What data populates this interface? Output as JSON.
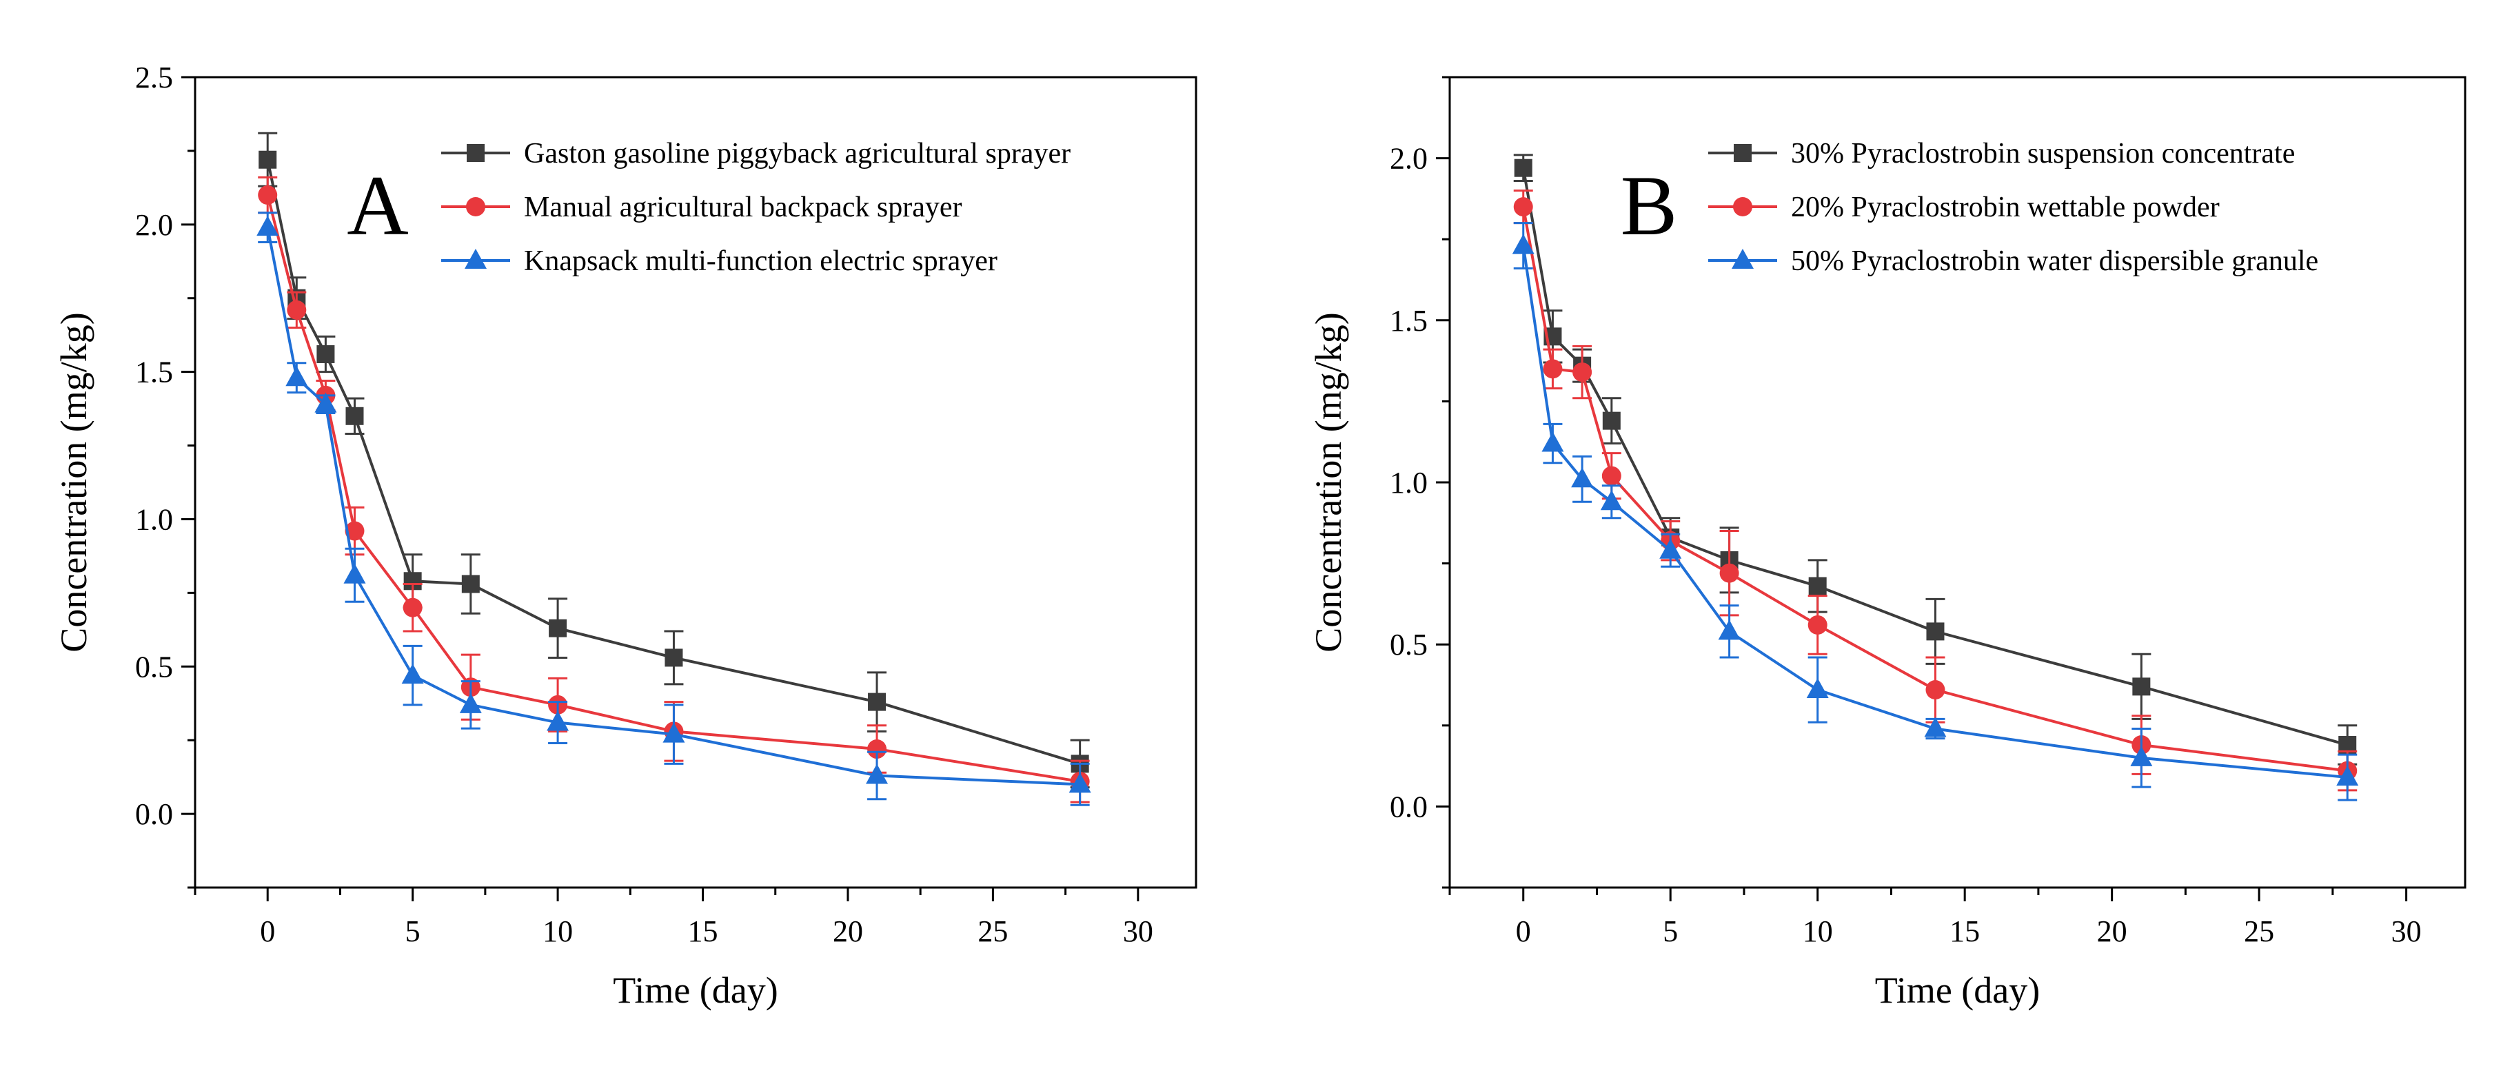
{
  "colors": {
    "black_series": "#3c3c3c",
    "red_series": "#e8383d",
    "blue_series": "#1f6fd6",
    "axis": "#000000"
  },
  "chart_data": [
    {
      "type": "line",
      "panel_label": "A",
      "title": "",
      "xlabel": "Time (day)",
      "ylabel": "Concentration (mg/kg)",
      "xlim": [
        -2.5,
        32
      ],
      "ylim": [
        -0.25,
        2.5
      ],
      "xticks": [
        0,
        5,
        10,
        15,
        20,
        25,
        30
      ],
      "xtick_labels": [
        "0",
        "5",
        "10",
        "15",
        "20",
        "25",
        "30"
      ],
      "yticks": [
        0.0,
        0.5,
        1.0,
        1.5,
        2.0,
        2.5
      ],
      "ytick_labels": [
        "0.0",
        "0.5",
        "1.0",
        "1.5",
        "2.0",
        "2.5"
      ],
      "grid": false,
      "legend_position": "top-right",
      "x": [
        0,
        1,
        2,
        3,
        5,
        7,
        10,
        14,
        21,
        28
      ],
      "series": [
        {
          "name": "Gaston gasoline piggyback agricultural sprayer",
          "color": "#3c3c3c",
          "marker": "square",
          "values": [
            2.22,
            1.75,
            1.56,
            1.35,
            0.79,
            0.78,
            0.63,
            0.53,
            0.38,
            0.17
          ],
          "errors": [
            0.09,
            0.07,
            0.06,
            0.06,
            0.09,
            0.1,
            0.1,
            0.09,
            0.1,
            0.08
          ]
        },
        {
          "name": "Manual agricultural backpack sprayer",
          "color": "#e8383d",
          "marker": "circle",
          "values": [
            2.1,
            1.71,
            1.42,
            0.96,
            0.7,
            0.43,
            0.37,
            0.28,
            0.22,
            0.11
          ],
          "errors": [
            0.06,
            0.06,
            0.05,
            0.08,
            0.08,
            0.11,
            0.09,
            0.1,
            0.08,
            0.07
          ]
        },
        {
          "name": "Knapsack multi-function electric sprayer",
          "color": "#1f6fd6",
          "marker": "triangle",
          "values": [
            1.99,
            1.48,
            1.39,
            0.81,
            0.47,
            0.37,
            0.31,
            0.27,
            0.13,
            0.1
          ],
          "errors": [
            0.05,
            0.05,
            0.03,
            0.09,
            0.1,
            0.08,
            0.07,
            0.1,
            0.08,
            0.07
          ]
        }
      ]
    },
    {
      "type": "line",
      "panel_label": "B",
      "title": "",
      "xlabel": "Time (day)",
      "ylabel": "Concentration (mg/kg)",
      "xlim": [
        -2.5,
        32
      ],
      "ylim": [
        -0.25,
        2.25
      ],
      "xticks": [
        0,
        5,
        10,
        15,
        20,
        25,
        30
      ],
      "xtick_labels": [
        "0",
        "5",
        "10",
        "15",
        "20",
        "25",
        "30"
      ],
      "yticks": [
        0.0,
        0.5,
        1.0,
        1.5,
        2.0
      ],
      "ytick_labels": [
        "0.0",
        "0.5",
        "1.0",
        "1.5",
        "2.0"
      ],
      "grid": false,
      "legend_position": "top-right",
      "x": [
        0,
        1,
        2,
        3,
        5,
        7,
        10,
        14,
        21,
        28
      ],
      "series": [
        {
          "name": "30% Pyraclostrobin suspension concentrate",
          "color": "#3c3c3c",
          "marker": "square",
          "values": [
            1.97,
            1.45,
            1.36,
            1.19,
            0.83,
            0.76,
            0.68,
            0.54,
            0.37,
            0.19
          ],
          "errors": [
            0.04,
            0.08,
            0.05,
            0.07,
            0.06,
            0.1,
            0.08,
            0.1,
            0.1,
            0.06
          ]
        },
        {
          "name": "20% Pyraclostrobin wettable powder",
          "color": "#e8383d",
          "marker": "circle",
          "values": [
            1.85,
            1.35,
            1.34,
            1.02,
            0.82,
            0.72,
            0.56,
            0.36,
            0.19,
            0.11
          ],
          "errors": [
            0.05,
            0.06,
            0.08,
            0.07,
            0.06,
            0.13,
            0.09,
            0.1,
            0.09,
            0.06
          ]
        },
        {
          "name": "50% Pyraclostrobin water dispersible granule",
          "color": "#1f6fd6",
          "marker": "triangle",
          "values": [
            1.73,
            1.12,
            1.01,
            0.94,
            0.79,
            0.54,
            0.36,
            0.24,
            0.15,
            0.09
          ],
          "errors": [
            0.07,
            0.06,
            0.07,
            0.05,
            0.05,
            0.08,
            0.1,
            0.03,
            0.09,
            0.07
          ]
        }
      ]
    }
  ]
}
